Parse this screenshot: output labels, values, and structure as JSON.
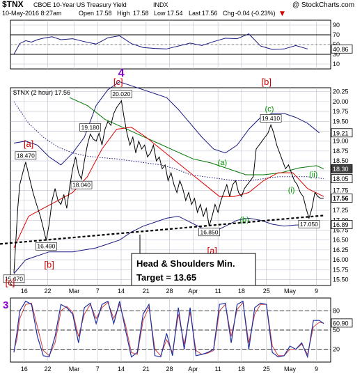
{
  "header": {
    "symbol": "$TNX",
    "description": "CBOE 10-Year US Treasury Yield",
    "exchange": "INDX",
    "watermark": "@ StockCharts.com",
    "datetime": "10-May-2016 8:27am",
    "open_label": "Open",
    "open": "17.58",
    "high_label": "High",
    "high": "17.58",
    "low_label": "Low",
    "low": "17.54",
    "last_label": "Last",
    "last": "17.56",
    "chg_label": "Chg",
    "chg": "-0.04 (-0.23%)",
    "chg_arrow": "▼"
  },
  "colors": {
    "price": "#000000",
    "ma_red": "#dd0000",
    "ma_green": "#007700",
    "bollinger": "#1a1a80",
    "purple": "#8800cc",
    "green_label": "#009900",
    "red_label": "#cc0000",
    "stoch_fast": "#1f2f9f",
    "stoch_slow": "#d04040",
    "badge_bg": "#404040",
    "grid": "#c0c0d0"
  },
  "chart_data": [
    {
      "type": "line",
      "panel": "rsi",
      "ylim": [
        0,
        100
      ],
      "yticks": [
        "90",
        "70",
        "50",
        "30",
        "10"
      ],
      "reference_lines": [
        30,
        70
      ],
      "last_value": "40.86",
      "wave_label": "4",
      "x": [
        0,
        2,
        4,
        6,
        8,
        10,
        13,
        16,
        20,
        24,
        28,
        32,
        36,
        40,
        44,
        48,
        52,
        56,
        60,
        64,
        68,
        72,
        76,
        80,
        84,
        88,
        92,
        96,
        100
      ],
      "values": [
        30,
        52,
        58,
        55,
        60,
        63,
        66,
        60,
        62,
        56,
        51,
        64,
        68,
        52,
        44,
        42,
        41,
        47,
        53,
        48,
        56,
        63,
        62,
        72,
        47,
        40,
        41,
        48,
        41
      ]
    },
    {
      "type": "line",
      "panel": "price",
      "title": "$TNX (2 hour) 17.56",
      "ylim": [
        15.35,
        20.35
      ],
      "yticks": [
        "20.25",
        "20.00",
        "19.75",
        "19.50",
        "19.25",
        "19.00",
        "18.75",
        "18.50",
        "18.25",
        "18.00",
        "17.75",
        "17.50",
        "17.25",
        "17.00",
        "16.75",
        "16.50",
        "16.25",
        "16.00",
        "15.75",
        "15.50"
      ],
      "xticks": [
        "16",
        "22",
        "Mar",
        "7",
        "14",
        "21",
        "28",
        "Apr",
        "11",
        "18",
        "25",
        "May",
        "9"
      ],
      "xtick_positions": [
        3.5,
        11.5,
        20.5,
        28.5,
        36.5,
        45,
        53,
        61,
        69.5,
        77.5,
        86,
        94,
        103
      ],
      "series": [
        {
          "role": "price",
          "x": [
            0,
            0.6,
            1.3,
            2,
            3,
            4,
            5.2,
            6.5,
            7.7,
            9,
            10,
            11,
            12,
            13,
            14,
            15,
            16,
            17,
            18,
            19,
            20,
            21,
            22,
            23,
            24,
            25,
            26,
            27,
            28,
            29,
            30,
            31,
            32,
            33,
            34,
            35,
            36.6,
            37.5,
            38.5,
            39.5,
            40.5,
            41.5,
            42.5,
            43.5,
            44.5,
            45.5,
            46.5,
            47.5,
            48.5,
            49.5,
            50.5,
            51.5,
            52.5,
            53.5,
            54.5,
            55.5,
            56.5,
            57.5,
            58.5,
            59.5,
            60.5,
            61.5,
            62.5,
            63.5,
            64.5,
            65.5,
            66.5,
            67.5,
            68.5,
            69.5,
            70.5,
            71.5,
            72.5,
            73.5,
            74.5,
            75.5,
            76.5,
            77.5,
            78.5,
            79.5,
            80.5,
            81.5,
            82.5,
            83.5,
            84.5,
            85.5,
            86.5,
            87.5,
            88.5,
            89.5,
            90.5,
            91.5,
            92.5,
            93.5,
            94.5,
            95.5,
            96.5,
            97.5,
            98.5,
            99.5,
            100.5,
            101.5,
            102.5,
            103.5,
            104.5,
            105.5
          ],
          "values": [
            15.67,
            16.4,
            17.3,
            17.9,
            18.2,
            18.47,
            18.1,
            17.7,
            17.4,
            17.1,
            16.8,
            16.49,
            16.9,
            17.5,
            17.8,
            17.5,
            17.4,
            17.65,
            17.3,
            17.85,
            18.3,
            18.6,
            18.2,
            18.04,
            18.5,
            18.9,
            19.18,
            19.05,
            19.0,
            19.2,
            18.9,
            19.3,
            19.5,
            19.4,
            19.7,
            19.85,
            20.02,
            19.6,
            19.2,
            18.9,
            19.1,
            18.7,
            19.0,
            18.8,
            18.9,
            18.6,
            18.7,
            18.9,
            18.5,
            18.6,
            18.3,
            18.4,
            18.0,
            18.2,
            17.9,
            17.7,
            18.0,
            17.8,
            17.5,
            17.7,
            17.4,
            17.55,
            17.2,
            17.4,
            17.1,
            17.3,
            16.85,
            17.1,
            17.4,
            17.2,
            17.5,
            17.7,
            17.9,
            17.6,
            17.9,
            18.0,
            17.7,
            17.6,
            17.8,
            17.9,
            18.0,
            18.1,
            18.8,
            18.9,
            19.0,
            19.1,
            19.2,
            19.41,
            19.2,
            18.9,
            18.7,
            18.5,
            18.3,
            18.4,
            18.2,
            18.0,
            17.9,
            17.7,
            17.6,
            17.3,
            17.05,
            17.3,
            17.7,
            17.6,
            17.55,
            17.56
          ]
        },
        {
          "role": "ma-red",
          "x": [
            0,
            5,
            10,
            15,
            20,
            25,
            30,
            35,
            40,
            45,
            50,
            55,
            60,
            65,
            70,
            75,
            80,
            85,
            90,
            95,
            100,
            105.5
          ],
          "values": [
            16.3,
            17.1,
            17.3,
            17.5,
            17.7,
            18.1,
            18.8,
            19.3,
            19.35,
            19.1,
            18.8,
            18.5,
            18.2,
            17.9,
            17.6,
            17.6,
            17.7,
            18.0,
            18.2,
            18.2,
            17.8,
            17.6
          ]
        },
        {
          "role": "ma-green",
          "x": [
            19,
            25,
            31,
            37,
            43,
            49,
            55,
            61,
            67,
            73,
            79,
            85,
            91,
            97,
            103,
            105.5
          ],
          "values": [
            20.1,
            19.9,
            19.55,
            19.35,
            19.15,
            18.95,
            18.75,
            18.55,
            18.45,
            18.3,
            18.15,
            18.15,
            18.2,
            18.32,
            18.38,
            18.3
          ]
        },
        {
          "role": "ma-dotted",
          "x": [
            0,
            5,
            10,
            15,
            20,
            25,
            30,
            35,
            40,
            45,
            50,
            55,
            60,
            65,
            70,
            75,
            80,
            85,
            90,
            95,
            100,
            105.5
          ],
          "values": [
            20.0,
            19.45,
            19.1,
            18.85,
            18.7,
            18.62,
            18.58,
            18.55,
            18.5,
            18.45,
            18.4,
            18.3,
            18.15,
            18.1,
            18.05,
            18.0,
            18.0,
            18.05,
            18.1,
            18.1,
            18.1,
            18.05
          ]
        },
        {
          "role": "bollinger-upper",
          "x": [
            0,
            4,
            8,
            12,
            16,
            20,
            24,
            28,
            32,
            36,
            40,
            44,
            48,
            52,
            56,
            60,
            64,
            68,
            72,
            76,
            80,
            84,
            88,
            92,
            96,
            100,
            104
          ],
          "values": [
            18.95,
            19.0,
            18.9,
            18.6,
            18.4,
            18.7,
            19.1,
            19.9,
            20.3,
            20.5,
            20.4,
            20.3,
            20.2,
            20.1,
            19.8,
            19.45,
            19.1,
            18.8,
            18.7,
            18.9,
            19.3,
            19.6,
            19.7,
            19.7,
            19.6,
            19.45,
            19.21
          ]
        },
        {
          "role": "bollinger-lower",
          "x": [
            0,
            4,
            8,
            12,
            16,
            20,
            24,
            28,
            32,
            36,
            40,
            44,
            48,
            52,
            56,
            60,
            64,
            68,
            72,
            76,
            80,
            84,
            88,
            92,
            96,
            100,
            104
          ],
          "values": [
            15.65,
            16.0,
            16.1,
            16.2,
            16.2,
            16.2,
            16.25,
            16.3,
            16.4,
            16.5,
            16.7,
            16.85,
            16.95,
            17.05,
            17.1,
            16.95,
            16.8,
            16.7,
            16.85,
            17.0,
            17.05,
            17.0,
            16.9,
            16.85,
            16.88,
            16.88,
            16.89
          ]
        },
        {
          "role": "neckline",
          "x": [
            -3,
            105.5
          ],
          "values": [
            16.4,
            17.12
          ]
        }
      ],
      "price_labels": [
        {
          "text": "15.670",
          "x": 0,
          "y": 15.67,
          "pos": "below"
        },
        {
          "text": "18.470",
          "x": 4,
          "y": 18.47,
          "pos": "above"
        },
        {
          "text": "16.490",
          "x": 11,
          "y": 16.49,
          "pos": "below"
        },
        {
          "text": "18.040",
          "x": 23,
          "y": 18.04,
          "pos": "below"
        },
        {
          "text": "19.180",
          "x": 26,
          "y": 19.18,
          "pos": "above"
        },
        {
          "text": "20.020",
          "x": 36.6,
          "y": 20.02,
          "pos": "above"
        },
        {
          "text": "16.850",
          "x": 66.5,
          "y": 16.85,
          "pos": "below"
        },
        {
          "text": "19.410",
          "x": 87.5,
          "y": 19.41,
          "pos": "above"
        },
        {
          "text": "17.050",
          "x": 100.5,
          "y": 17.05,
          "pos": "below"
        }
      ],
      "wave_labels": [
        {
          "text": "[c]",
          "x": 35.5,
          "y": 20.42,
          "color": "red"
        },
        {
          "text": "[b]",
          "x": 86,
          "y": 20.42,
          "color": "red"
        },
        {
          "text": "(c)",
          "x": 87,
          "y": 19.75,
          "color": "green"
        },
        {
          "text": "[a]",
          "x": 5,
          "y": 18.85,
          "color": "red"
        },
        {
          "text": "(a)",
          "x": 71,
          "y": 18.4,
          "color": "green"
        },
        {
          "text": "(ii)",
          "x": 102,
          "y": 18.1,
          "color": "green"
        },
        {
          "text": "(i)",
          "x": 94.5,
          "y": 17.7,
          "color": "green"
        },
        {
          "text": "(b)",
          "x": 78.5,
          "y": 16.95,
          "color": "green"
        },
        {
          "text": "[a]",
          "x": 67.5,
          "y": 16.15,
          "color": "red"
        },
        {
          "text": "[b]",
          "x": 12,
          "y": 15.8,
          "color": "red"
        },
        {
          "text": "[c]",
          "x": -1.3,
          "y": 15.35,
          "color": "red"
        }
      ],
      "right_badges": [
        {
          "text": "19.21",
          "value": 19.21,
          "style": "white"
        },
        {
          "text": "18.30",
          "value": 18.3,
          "style": "dark"
        },
        {
          "text": "18.05",
          "value": 18.05,
          "style": "white"
        },
        {
          "text": "17.56",
          "value": 17.56,
          "style": "white-bold"
        },
        {
          "text": "16.89",
          "value": 16.89,
          "style": "white"
        }
      ],
      "annotation": {
        "line1": "Head & Shoulders Min.",
        "line2": "Target = 13.65"
      }
    },
    {
      "type": "line",
      "panel": "stochastic",
      "ylim": [
        0,
        100
      ],
      "yticks": [
        "80",
        "50",
        "20"
      ],
      "reference_lines": [
        20,
        50,
        80
      ],
      "last_value": "60.90",
      "wave_label": "3",
      "series": [
        {
          "role": "fast",
          "x": [
            0,
            1,
            2,
            4,
            6,
            8,
            10,
            12,
            14,
            16,
            18,
            20,
            22,
            24,
            26,
            28,
            30,
            32,
            34,
            36,
            38,
            40,
            42,
            44,
            46,
            48,
            50,
            52,
            54,
            56,
            58,
            60,
            62,
            64,
            66,
            68,
            70,
            72,
            74,
            76,
            78,
            80,
            82,
            84,
            86,
            88,
            90,
            92,
            94,
            96,
            98,
            100,
            102,
            104,
            105.5
          ],
          "values": [
            15,
            45,
            80,
            95,
            90,
            40,
            10,
            8,
            40,
            90,
            85,
            75,
            30,
            85,
            92,
            60,
            90,
            95,
            60,
            95,
            50,
            8,
            15,
            75,
            90,
            10,
            8,
            45,
            10,
            85,
            20,
            85,
            10,
            12,
            15,
            20,
            90,
            92,
            30,
            90,
            95,
            20,
            85,
            92,
            90,
            15,
            8,
            10,
            25,
            20,
            30,
            8,
            65,
            65,
            60
          ]
        },
        {
          "role": "slow",
          "x": [
            0,
            1,
            2,
            4,
            6,
            8,
            10,
            12,
            14,
            16,
            18,
            20,
            22,
            24,
            26,
            28,
            30,
            32,
            34,
            36,
            38,
            40,
            42,
            44,
            46,
            48,
            50,
            52,
            54,
            56,
            58,
            60,
            62,
            64,
            66,
            68,
            70,
            72,
            74,
            76,
            78,
            80,
            82,
            84,
            86,
            88,
            90,
            92,
            94,
            96,
            98,
            100,
            102,
            104,
            105.5
          ],
          "values": [
            18,
            35,
            68,
            90,
            92,
            55,
            18,
            10,
            30,
            80,
            87,
            78,
            40,
            75,
            90,
            68,
            85,
            93,
            68,
            90,
            58,
            15,
            12,
            65,
            86,
            20,
            10,
            35,
            15,
            75,
            28,
            78,
            18,
            12,
            14,
            18,
            80,
            90,
            40,
            82,
            93,
            30,
            75,
            90,
            90,
            25,
            10,
            10,
            20,
            20,
            28,
            12,
            55,
            62,
            61
          ]
        }
      ]
    }
  ]
}
